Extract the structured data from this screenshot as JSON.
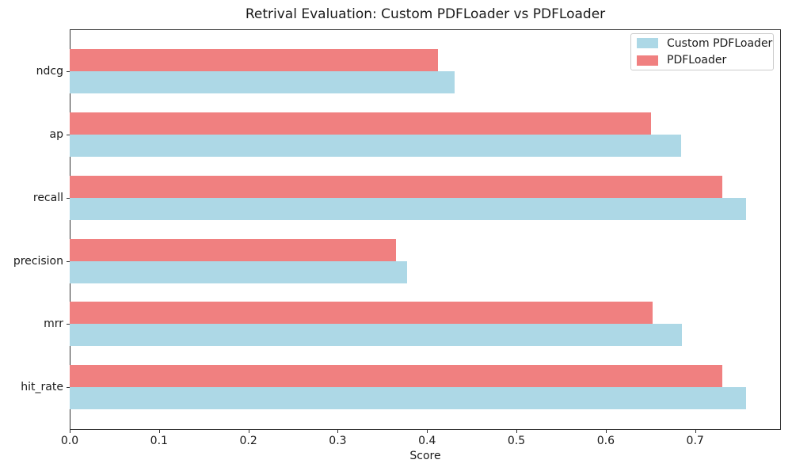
{
  "chart_data": {
    "type": "bar",
    "orientation": "horizontal",
    "title": "Retrival Evaluation: Custom PDFLoader vs PDFLoader",
    "xlabel": "Score",
    "ylabel": "",
    "categories": [
      "ndcg",
      "ap",
      "recall",
      "precision",
      "mrr",
      "hit_rate"
    ],
    "series": [
      {
        "name": "Custom PDFLoader",
        "color": "#ADD8E6",
        "values": [
          0.431,
          0.684,
          0.757,
          0.378,
          0.685,
          0.757
        ]
      },
      {
        "name": "PDFLoader",
        "color": "#F08080",
        "values": [
          0.412,
          0.651,
          0.73,
          0.365,
          0.652,
          0.73
        ]
      }
    ],
    "xlim": [
      0,
      0.796
    ],
    "xticks": [
      0.0,
      0.1,
      0.2,
      0.3,
      0.4,
      0.5,
      0.6,
      0.7
    ],
    "xtick_labels": [
      "0.0",
      "0.1",
      "0.2",
      "0.3",
      "0.4",
      "0.5",
      "0.6",
      "0.7"
    ],
    "legend_position": "upper right",
    "legend_order": [
      "Custom PDFLoader",
      "PDFLoader"
    ],
    "grid": false,
    "background_color": "#ffffff",
    "spine_color": "#333333"
  }
}
